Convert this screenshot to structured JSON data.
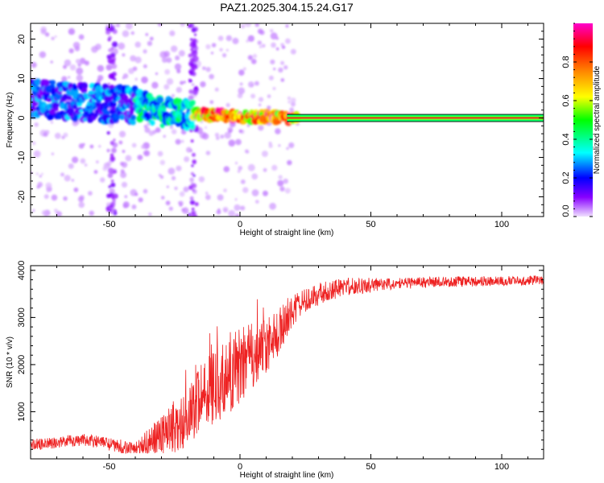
{
  "title": "PAZ1.2025.304.15.24.G17",
  "chart_data": [
    {
      "type": "heatmap",
      "name": "spectrogram",
      "xlabel": "Height of straight line (km)",
      "ylabel": "Frequency (Hz)",
      "xlim": [
        -80,
        116
      ],
      "ylim": [
        -25,
        24
      ],
      "x_ticks": [
        -50,
        0,
        50,
        100
      ],
      "y_ticks": [
        -20,
        -10,
        0,
        10,
        20
      ],
      "x_tick_labels": [
        "-50",
        "0",
        "50",
        "100"
      ],
      "y_tick_labels": [
        "-20",
        "-10",
        "0",
        "10",
        "20"
      ],
      "colorbar": {
        "label": "Normalized spectral amplitude",
        "range": [
          0,
          1
        ],
        "ticks": [
          0.0,
          0.2,
          0.4,
          0.6,
          0.8
        ],
        "tick_labels": [
          "0.0",
          "0.2",
          "0.4",
          "0.6",
          "0.8"
        ],
        "colors": [
          "#f0e0ff",
          "#8800ff",
          "#0000ff",
          "#00ffff",
          "#00ff00",
          "#ffff00",
          "#ff8800",
          "#ff0000",
          "#ff00cc"
        ]
      },
      "ridge": [
        {
          "x": -78,
          "f": 5.0
        },
        {
          "x": -70,
          "f": 4.5
        },
        {
          "x": -60,
          "f": 4.0
        },
        {
          "x": -50,
          "f": 3.5
        },
        {
          "x": -42,
          "f": 3.5
        },
        {
          "x": -38,
          "f": 3.0
        },
        {
          "x": -30,
          "f": 1.5
        },
        {
          "x": -20,
          "f": 1.0
        },
        {
          "x": -15,
          "f": 1.0
        },
        {
          "x": -5,
          "f": 0.5
        },
        {
          "x": 5,
          "f": 0.3
        },
        {
          "x": 15,
          "f": 0.2
        },
        {
          "x": 20,
          "f": 0.0
        },
        {
          "x": 116,
          "f": 0.0
        }
      ],
      "vertical_streaks_x": [
        -49,
        -18
      ],
      "steady_tone": {
        "from_x": 18,
        "to_x": 116,
        "f": 0.0
      }
    },
    {
      "type": "line",
      "name": "snr",
      "xlabel": "Height of straight line (km)",
      "ylabel": "SNR (10 * v/v)",
      "xlim": [
        -80,
        116
      ],
      "ylim": [
        0,
        4100
      ],
      "x_ticks": [
        -50,
        0,
        50,
        100
      ],
      "y_ticks": [
        1000,
        2000,
        3000,
        4000
      ],
      "x_tick_labels": [
        "-50",
        "0",
        "50",
        "100"
      ],
      "y_tick_labels": [
        "1000",
        "2000",
        "3000",
        "4000"
      ],
      "color": "#ee2222",
      "trend": [
        {
          "x": -80,
          "y": 300
        },
        {
          "x": -60,
          "y": 400
        },
        {
          "x": -50,
          "y": 320
        },
        {
          "x": -40,
          "y": 200
        },
        {
          "x": -30,
          "y": 500
        },
        {
          "x": -20,
          "y": 900
        },
        {
          "x": -15,
          "y": 1300
        },
        {
          "x": -10,
          "y": 1500
        },
        {
          "x": 0,
          "y": 1900
        },
        {
          "x": 10,
          "y": 2400
        },
        {
          "x": 15,
          "y": 2700
        },
        {
          "x": 20,
          "y": 3200
        },
        {
          "x": 30,
          "y": 3500
        },
        {
          "x": 40,
          "y": 3650
        },
        {
          "x": 60,
          "y": 3720
        },
        {
          "x": 80,
          "y": 3760
        },
        {
          "x": 100,
          "y": 3780
        },
        {
          "x": 116,
          "y": 3790
        }
      ],
      "noise": [
        {
          "x": -80,
          "amp": 120
        },
        {
          "x": -40,
          "amp": 150
        },
        {
          "x": -20,
          "amp": 700
        },
        {
          "x": -5,
          "amp": 800
        },
        {
          "x": 15,
          "amp": 500
        },
        {
          "x": 25,
          "amp": 250
        },
        {
          "x": 60,
          "amp": 120
        },
        {
          "x": 116,
          "amp": 100
        }
      ]
    }
  ]
}
